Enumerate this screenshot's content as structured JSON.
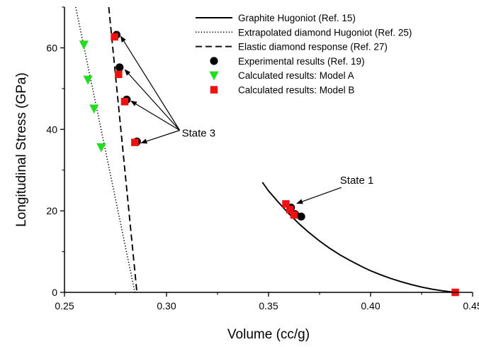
{
  "chart_data": {
    "type": "scatter",
    "xlabel": "Volume (cc/g)",
    "ylabel": "Longitudinal Stress (GPa)",
    "xlim": [
      0.25,
      0.45
    ],
    "ylim": [
      0,
      70
    ],
    "x_ticks": [
      0.25,
      0.3,
      0.35,
      0.4,
      0.45
    ],
    "x_tick_labels": [
      "0.25",
      "0.30",
      "0.35",
      "0.40",
      "0.45"
    ],
    "y_ticks": [
      0,
      20,
      40,
      60
    ],
    "y_tick_labels": [
      "0",
      "20",
      "40",
      "60"
    ],
    "grid": false,
    "legend_position": "top-right",
    "series": [
      {
        "name": "Graphite Hugoniot (Ref. 15)",
        "kind": "line",
        "style": "solid",
        "color": "#000000",
        "x": [
          0.347,
          0.35,
          0.355,
          0.36,
          0.365,
          0.37,
          0.375,
          0.38,
          0.385,
          0.39,
          0.395,
          0.4,
          0.405,
          0.41,
          0.415,
          0.42,
          0.425,
          0.43,
          0.435,
          0.4415
        ],
        "y": [
          27.0,
          24.9,
          22.0,
          19.3,
          16.8,
          14.6,
          12.6,
          10.8,
          9.2,
          7.8,
          6.5,
          5.3,
          4.3,
          3.4,
          2.6,
          1.9,
          1.3,
          0.8,
          0.4,
          0.0
        ]
      },
      {
        "name": "Extrapolated diamond Hugoniot (Ref. 25)",
        "kind": "line",
        "style": "dotted",
        "color": "#000000",
        "x": [
          0.2555,
          0.2845
        ],
        "y": [
          70,
          0
        ]
      },
      {
        "name": "Elastic diamond response (Ref. 27)",
        "kind": "line",
        "style": "dashed",
        "color": "#000000",
        "x": [
          0.2717,
          0.2855
        ],
        "y": [
          70,
          0
        ]
      },
      {
        "name": "Experimental results (Ref. 19)",
        "kind": "points",
        "marker": "circle",
        "color": "#000000",
        "x": [
          0.2755,
          0.277,
          0.2805,
          0.2855,
          0.361,
          0.363,
          0.366
        ],
        "y": [
          63.2,
          55.2,
          47.3,
          37.0,
          20.8,
          19.2,
          18.6
        ]
      },
      {
        "name": "Calculated results:  Model A",
        "kind": "points",
        "marker": "triangle-down",
        "color": "#22dd22",
        "x": [
          0.2595,
          0.2615,
          0.2645,
          0.268
        ],
        "y": [
          60.8,
          52.2,
          45.1,
          35.6
        ]
      },
      {
        "name": "Calculated results:  Model B",
        "kind": "points",
        "marker": "square",
        "color": "#ee1111",
        "x": [
          0.2745,
          0.2765,
          0.2795,
          0.2845,
          0.3585,
          0.3605,
          0.3625,
          0.4415
        ],
        "y": [
          62.7,
          53.5,
          46.8,
          36.8,
          21.7,
          20.3,
          19.0,
          0.0
        ]
      }
    ],
    "annotations": [
      {
        "text": "State 3",
        "pos": [
          0.3075,
          38.2
        ],
        "arrows_to": [
          [
            0.2755,
            63.2
          ],
          [
            0.2775,
            55.0
          ],
          [
            0.2805,
            47.3
          ],
          [
            0.2855,
            37.0
          ]
        ]
      },
      {
        "text": "State 1",
        "pos": [
          0.385,
          26.6
        ],
        "arrows_to": [
          [
            0.3625,
            21.3
          ]
        ]
      }
    ]
  },
  "colors": {
    "axis": "#000000",
    "model_a": "#22dd22",
    "model_b": "#ee1111",
    "experimental": "#000000"
  }
}
